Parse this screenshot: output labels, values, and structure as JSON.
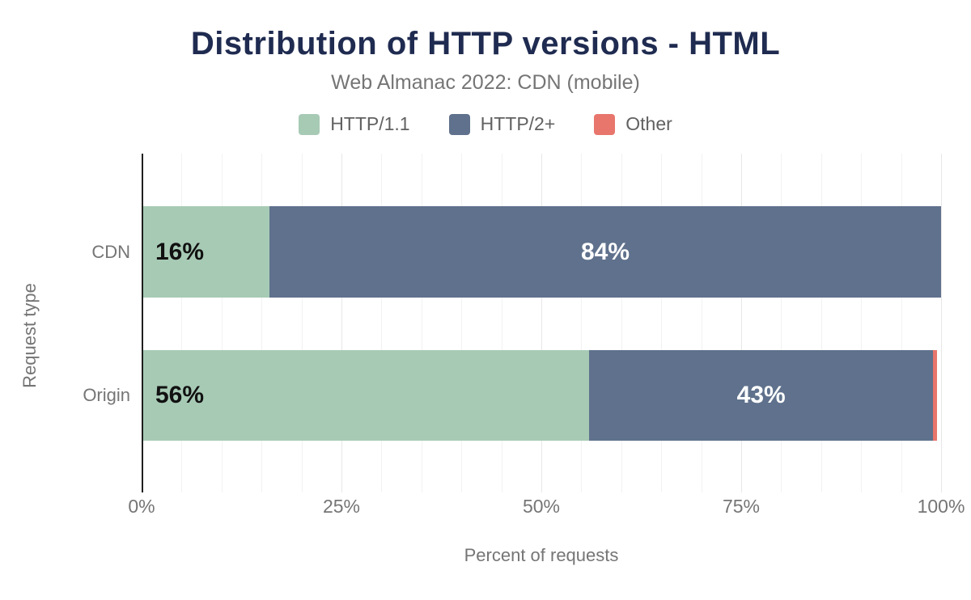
{
  "colors": {
    "title": "#1f2b50",
    "subtitle": "#757575",
    "axis_text": "#757575",
    "legend_text": "#616161",
    "axis_line": "#1f1f1f",
    "gridline": "#f2f2f2",
    "gridline_major": "#e7e7e7",
    "background": "#ffffff",
    "http11_green": "#a7cab5",
    "http2_slate": "#5f718c",
    "other_salmon": "#e8766c"
  },
  "chart_data": {
    "type": "bar",
    "orientation": "horizontal",
    "stacked": true,
    "title": "Distribution of HTTP versions - HTML",
    "subtitle": "Web Almanac 2022: CDN (mobile)",
    "xlabel": "Percent of requests",
    "ylabel": "Request type",
    "xlim": [
      0,
      100
    ],
    "grid_step": 5,
    "major_grid_step": 25,
    "grid": "on",
    "legend_position": "top",
    "x_ticks": [
      {
        "value": 0,
        "label": "0%"
      },
      {
        "value": 25,
        "label": "25%"
      },
      {
        "value": 50,
        "label": "50%"
      },
      {
        "value": 75,
        "label": "75%"
      },
      {
        "value": 100,
        "label": "100%"
      }
    ],
    "categories": [
      "CDN",
      "Origin"
    ],
    "series": [
      {
        "name": "HTTP/1.1",
        "color": "#a7cab5",
        "values": [
          16,
          56
        ],
        "value_labels": [
          "16%",
          "56%"
        ],
        "label_color": "#111111",
        "label_align": "start"
      },
      {
        "name": "HTTP/2+",
        "color": "#5f718c",
        "values": [
          84,
          43
        ],
        "value_labels": [
          "84%",
          "43%"
        ],
        "label_color": "#ffffff",
        "label_align": "center"
      },
      {
        "name": "Other",
        "color": "#e8766c",
        "values": [
          0,
          0.5
        ],
        "value_labels": [
          "",
          ""
        ],
        "label_color": "#111111",
        "label_align": "center"
      }
    ]
  }
}
